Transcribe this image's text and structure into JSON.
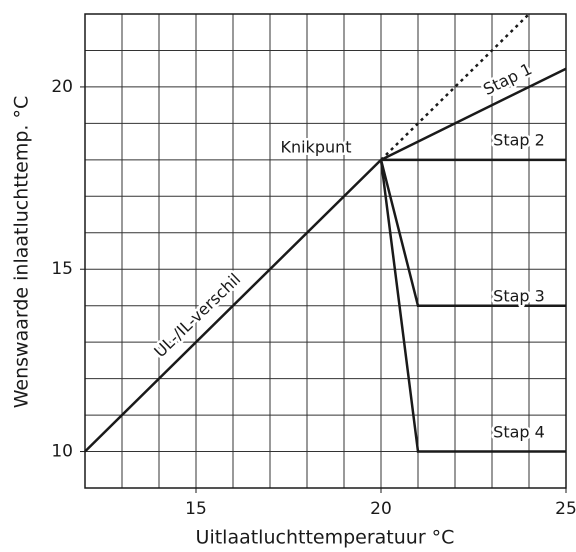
{
  "chart_data": {
    "type": "line",
    "xlabel": "Uitlaatluchttemperatuur °C",
    "ylabel": "Wenswaarde inlaatluchttemp. °C",
    "xlim": [
      12,
      25
    ],
    "ylim": [
      9,
      22
    ],
    "xticks": [
      15,
      20,
      25
    ],
    "yticks": [
      10,
      15,
      20
    ],
    "x_gridlines": [
      13,
      14,
      15,
      16,
      17,
      18,
      19,
      20,
      21,
      22,
      23,
      24
    ],
    "y_gridlines": [
      10,
      11,
      12,
      13,
      14,
      15,
      16,
      17,
      18,
      19,
      20,
      21
    ],
    "grid": true,
    "annotations": [
      "Knikpunt"
    ],
    "series": [
      {
        "name": "UL-/IL-verschil",
        "color": "#1a1a1a",
        "x": [
          12,
          20
        ],
        "values": [
          10,
          18
        ]
      },
      {
        "color": "#1a1a1a",
        "style": "dotted",
        "x": [
          20,
          24
        ],
        "values": [
          18,
          22
        ]
      },
      {
        "name": "Stap 1",
        "color": "#1a1a1a",
        "x": [
          20,
          25
        ],
        "values": [
          18,
          20.5
        ]
      },
      {
        "name": "Stap 2",
        "color": "#1a1a1a",
        "x": [
          20,
          25
        ],
        "values": [
          18,
          18
        ]
      },
      {
        "name": "Stap 3",
        "color": "#1a1a1a",
        "x": [
          20,
          21,
          25
        ],
        "values": [
          18,
          14,
          14
        ]
      },
      {
        "name": "Stap 4",
        "color": "#1a1a1a",
        "x": [
          20,
          21,
          25
        ],
        "values": [
          18,
          10,
          10
        ]
      }
    ]
  }
}
